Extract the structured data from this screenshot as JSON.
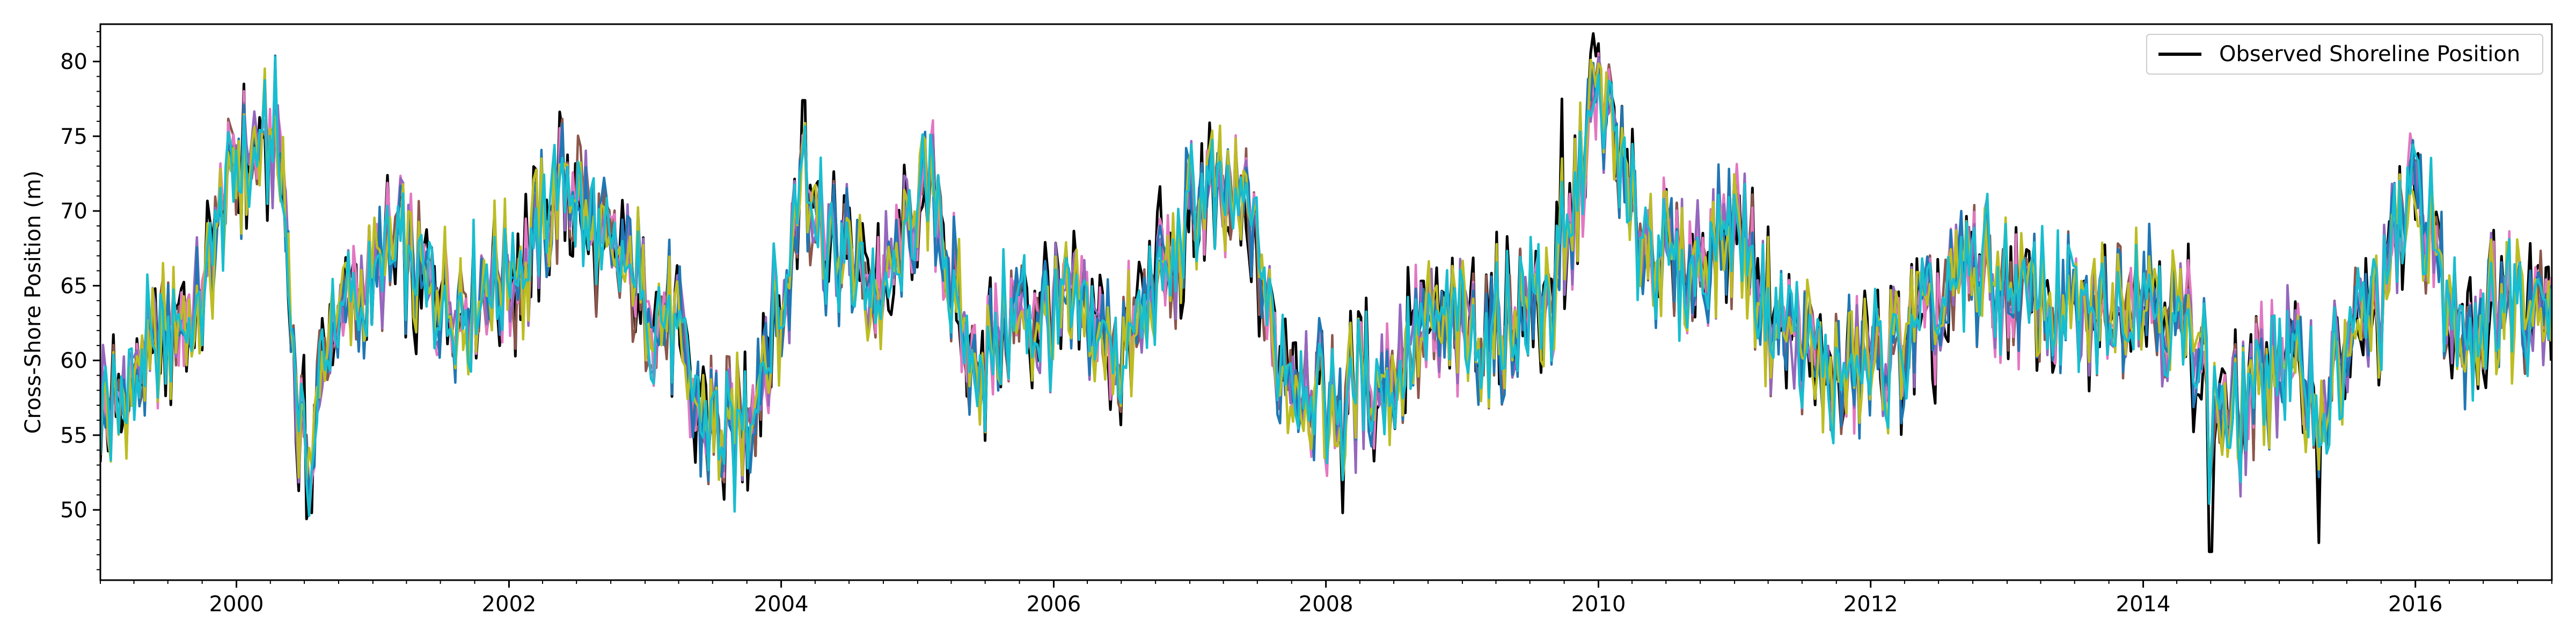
{
  "chart_data": {
    "type": "line",
    "title": "",
    "xlabel": "",
    "ylabel": "Cross-Shore Position (m)",
    "xlim": [
      "1999-01-01",
      "2017-01-01"
    ],
    "ylim": [
      45.3,
      82.5
    ],
    "x_ticks": [
      "2000",
      "2002",
      "2004",
      "2006",
      "2008",
      "2010",
      "2012",
      "2014",
      "2016"
    ],
    "y_ticks": [
      50,
      55,
      60,
      65,
      70,
      75,
      80
    ],
    "grid": false,
    "legend_position": "top-right",
    "legend": [
      "Observed Shoreline Position"
    ],
    "anchor_x": [
      "1999-01-01",
      "1999-09-01",
      "2000-01-01",
      "2000-04-15",
      "2000-07-01",
      "2000-10-01",
      "2001-03-01",
      "2001-08-01",
      "2002-02-01",
      "2002-06-01",
      "2002-10-01",
      "2003-03-01",
      "2003-06-01",
      "2003-09-01",
      "2004-01-01",
      "2004-03-01",
      "2004-06-01",
      "2004-10-01",
      "2005-02-01",
      "2005-06-01",
      "2005-10-01",
      "2006-03-01",
      "2006-07-01",
      "2006-11-01",
      "2007-02-01",
      "2007-06-01",
      "2007-09-01",
      "2008-02-01",
      "2008-06-01",
      "2008-10-01",
      "2009-03-01",
      "2009-09-01",
      "2010-01-01",
      "2010-05-01",
      "2010-09-01",
      "2011-01-01",
      "2011-05-01",
      "2011-10-01",
      "2012-02-01",
      "2012-06-01",
      "2012-10-01",
      "2013-03-01",
      "2013-08-01",
      "2014-01-01",
      "2014-05-01",
      "2014-09-01",
      "2015-01-01",
      "2015-05-01",
      "2015-09-01",
      "2016-01-01",
      "2016-05-01",
      "2016-09-01",
      "2017-01-01"
    ],
    "anchor_y": [
      57,
      63,
      73,
      75,
      54,
      63,
      67,
      64,
      66,
      72,
      67,
      63,
      56,
      55,
      63,
      72,
      67,
      65,
      71,
      60,
      63,
      63,
      61,
      66,
      71,
      70,
      60,
      57,
      59,
      62,
      62,
      64,
      77,
      68,
      66,
      69,
      62,
      59,
      60,
      62,
      66,
      64,
      63,
      65,
      62,
      56,
      60,
      58,
      63,
      71,
      62,
      64,
      65
    ],
    "extreme_points": [
      [
        "2000-01-20",
        78.5
      ],
      [
        "2000-07-20",
        49.8
      ],
      [
        "2003-08-01",
        50.7
      ],
      [
        "2004-03-01",
        77.4
      ],
      [
        "2008-02-15",
        49.8
      ],
      [
        "2009-09-25",
        77.5
      ],
      [
        "2010-01-01",
        81.2
      ],
      [
        "2014-07-01",
        47.2
      ],
      [
        "2015-04-15",
        47.8
      ]
    ],
    "series": [
      {
        "name": "Observed Shoreline Position",
        "color": "#000000",
        "noise": 3.4,
        "seed": 11
      },
      {
        "color": "#8c564b",
        "noise": 2.6,
        "seed": 23
      },
      {
        "color": "#e377c2",
        "noise": 2.5,
        "seed": 37
      },
      {
        "color": "#9467bd",
        "noise": 2.5,
        "seed": 41
      },
      {
        "color": "#1f77b4",
        "noise": 2.5,
        "seed": 53
      },
      {
        "color": "#bcbd22",
        "noise": 2.7,
        "seed": 67
      },
      {
        "color": "#17becf",
        "noise": 2.6,
        "seed": 79
      }
    ]
  }
}
